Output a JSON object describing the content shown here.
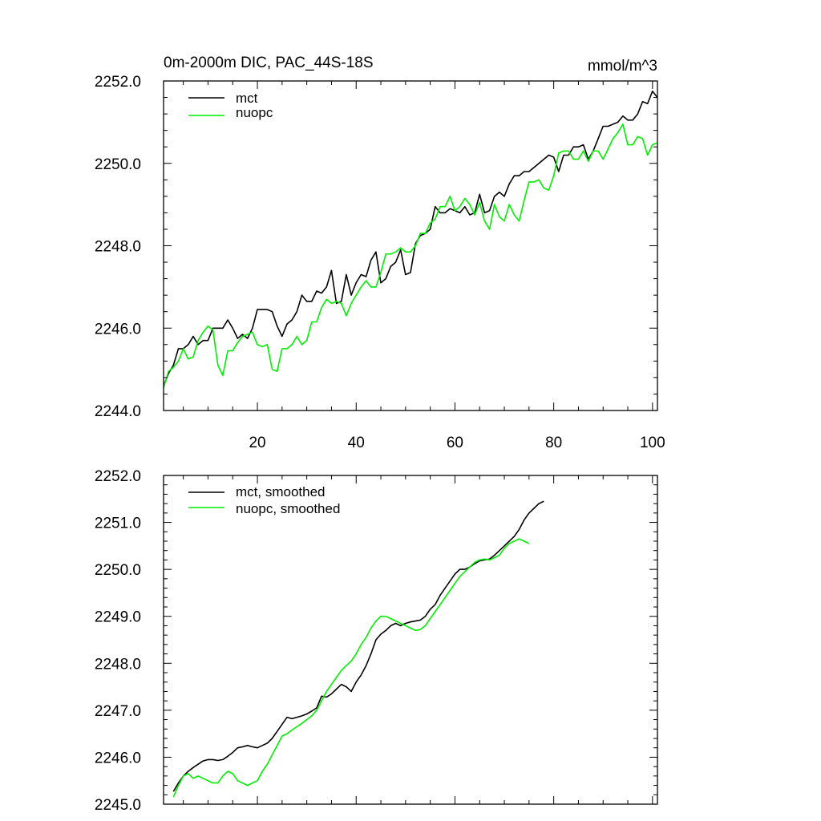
{
  "chart_data": [
    {
      "type": "line",
      "title": "0m-2000m DIC, PAC_44S-18S",
      "units": "mmol/m^3",
      "xlim": [
        1,
        101
      ],
      "ylim": [
        2244.0,
        2252.0
      ],
      "x_ticks": [
        20,
        40,
        60,
        80,
        100
      ],
      "x_tick_labels": [
        "20",
        "40",
        "60",
        "80",
        "100"
      ],
      "y_ticks": [
        2244.0,
        2246.0,
        2248.0,
        2250.0,
        2252.0
      ],
      "y_tick_labels": [
        "2244.0",
        "2246.0",
        "2248.0",
        "2250.0",
        "2252.0"
      ],
      "legend": [
        "mct",
        "nuopc"
      ],
      "legend_position": "top-left",
      "series": [
        {
          "name": "mct",
          "color": "#000000",
          "x_start": 1,
          "values": [
            2244.6,
            2244.9,
            2245.1,
            2245.5,
            2245.5,
            2245.6,
            2245.8,
            2245.6,
            2245.7,
            2245.7,
            2246.0,
            2246.0,
            2246.0,
            2246.2,
            2246.0,
            2245.75,
            2245.85,
            2245.75,
            2246.0,
            2246.45,
            2246.45,
            2246.45,
            2246.4,
            2246.05,
            2245.8,
            2246.1,
            2246.2,
            2246.4,
            2246.8,
            2246.65,
            2246.65,
            2246.9,
            2246.85,
            2247.0,
            2247.4,
            2246.6,
            2246.65,
            2247.3,
            2246.8,
            2247.1,
            2247.3,
            2247.25,
            2247.65,
            2247.85,
            2247.1,
            2247.2,
            2247.5,
            2247.6,
            2247.9,
            2247.3,
            2247.35,
            2248.05,
            2248.25,
            2248.3,
            2248.4,
            2248.95,
            2248.8,
            2248.8,
            2248.9,
            2248.85,
            2248.8,
            2248.95,
            2248.75,
            2248.8,
            2249.25,
            2248.8,
            2248.85,
            2249.2,
            2249.3,
            2249.2,
            2249.5,
            2249.7,
            2249.7,
            2249.8,
            2249.8,
            2249.9,
            2250.0,
            2250.1,
            2250.2,
            2250.15,
            2249.8,
            2250.2,
            2250.2,
            2250.4,
            2250.4,
            2250.45,
            2250.1,
            2250.3,
            2250.6,
            2250.9,
            2250.9,
            2250.95,
            2251.0,
            2251.15,
            2251.05,
            2251.05,
            2251.2,
            2251.5,
            2251.45,
            2251.75,
            2251.6
          ]
        },
        {
          "name": "nuopc",
          "color": "#00ee00",
          "x_start": 1,
          "values": [
            2244.55,
            2244.95,
            2245.05,
            2245.2,
            2245.5,
            2245.25,
            2245.3,
            2245.7,
            2245.9,
            2246.05,
            2245.95,
            2245.1,
            2244.85,
            2245.45,
            2245.45,
            2245.65,
            2245.8,
            2245.85,
            2245.9,
            2245.6,
            2245.55,
            2245.6,
            2245.0,
            2244.95,
            2245.5,
            2245.5,
            2245.6,
            2245.8,
            2245.6,
            2245.7,
            2246.15,
            2246.15,
            2246.5,
            2246.7,
            2246.6,
            2246.65,
            2246.6,
            2246.3,
            2246.6,
            2246.8,
            2247.0,
            2247.15,
            2247.0,
            2247.0,
            2247.35,
            2247.8,
            2247.8,
            2247.85,
            2247.95,
            2247.85,
            2247.85,
            2248.0,
            2248.3,
            2248.3,
            2248.55,
            2248.65,
            2248.95,
            2248.95,
            2249.2,
            2248.85,
            2248.95,
            2249.15,
            2249.0,
            2248.75,
            2249.05,
            2248.6,
            2248.4,
            2249.0,
            2248.7,
            2248.6,
            2249.0,
            2248.75,
            2248.6,
            2249.1,
            2249.55,
            2249.55,
            2249.6,
            2249.4,
            2249.35,
            2249.7,
            2250.25,
            2250.3,
            2250.3,
            2250.1,
            2250.1,
            2250.3,
            2250.05,
            2250.3,
            2250.3,
            2250.1,
            2250.35,
            2250.6,
            2250.75,
            2250.95,
            2250.45,
            2250.45,
            2250.65,
            2250.6,
            2250.2,
            2250.45,
            2250.5
          ]
        }
      ]
    },
    {
      "type": "line",
      "title": "",
      "xlim": [
        1,
        101
      ],
      "ylim": [
        2245.0,
        2252.0
      ],
      "x_ticks": [
        20,
        40,
        60,
        80,
        100
      ],
      "y_ticks": [
        2245.0,
        2246.0,
        2247.0,
        2248.0,
        2249.0,
        2250.0,
        2251.0,
        2252.0
      ],
      "y_tick_labels": [
        "2245.0",
        "2246.0",
        "2247.0",
        "2248.0",
        "2249.0",
        "2250.0",
        "2251.0",
        "2252.0"
      ],
      "legend": [
        "mct, smoothed",
        "nuopc, smoothed"
      ],
      "legend_position": "top-left",
      "series": [
        {
          "name": "mct, smoothed",
          "color": "#000000",
          "x_start": 3,
          "values": [
            2245.27,
            2245.45,
            2245.6,
            2245.7,
            2245.78,
            2245.85,
            2245.92,
            2245.95,
            2245.95,
            2245.93,
            2245.95,
            2246.02,
            2246.1,
            2246.2,
            2246.22,
            2246.25,
            2246.22,
            2246.2,
            2246.25,
            2246.3,
            2246.4,
            2246.55,
            2246.7,
            2246.85,
            2246.82,
            2246.85,
            2246.88,
            2246.92,
            2246.98,
            2247.05,
            2247.3,
            2247.28,
            2247.35,
            2247.45,
            2247.55,
            2247.5,
            2247.4,
            2247.6,
            2247.75,
            2247.95,
            2248.2,
            2248.5,
            2248.62,
            2248.7,
            2248.8,
            2248.85,
            2248.8,
            2248.85,
            2248.88,
            2248.9,
            2248.92,
            2249.0,
            2249.15,
            2249.25,
            2249.45,
            2249.6,
            2249.75,
            2249.9,
            2250.0,
            2250.0,
            2250.05,
            2250.12,
            2250.18,
            2250.2,
            2250.22,
            2250.3,
            2250.4,
            2250.5,
            2250.6,
            2250.7,
            2250.85,
            2251.05,
            2251.2,
            2251.3,
            2251.4,
            2251.45
          ]
        },
        {
          "name": "nuopc, smoothed",
          "color": "#00ee00",
          "x_start": 3,
          "values": [
            2245.15,
            2245.4,
            2245.6,
            2245.65,
            2245.55,
            2245.6,
            2245.55,
            2245.5,
            2245.45,
            2245.45,
            2245.6,
            2245.7,
            2245.65,
            2245.5,
            2245.45,
            2245.4,
            2245.45,
            2245.5,
            2245.7,
            2245.85,
            2246.05,
            2246.25,
            2246.45,
            2246.5,
            2246.58,
            2246.65,
            2246.72,
            2246.8,
            2246.88,
            2247.0,
            2247.2,
            2247.4,
            2247.55,
            2247.7,
            2247.85,
            2247.95,
            2248.05,
            2248.2,
            2248.4,
            2248.55,
            2248.75,
            2248.9,
            2249.0,
            2249.0,
            2248.95,
            2248.9,
            2248.85,
            2248.8,
            2248.75,
            2248.7,
            2248.72,
            2248.8,
            2248.95,
            2249.1,
            2249.25,
            2249.4,
            2249.55,
            2249.7,
            2249.85,
            2249.95,
            2250.05,
            2250.15,
            2250.2,
            2250.22,
            2250.2,
            2250.25,
            2250.3,
            2250.45,
            2250.55,
            2250.6,
            2250.65,
            2250.6,
            2250.55
          ]
        }
      ]
    }
  ]
}
